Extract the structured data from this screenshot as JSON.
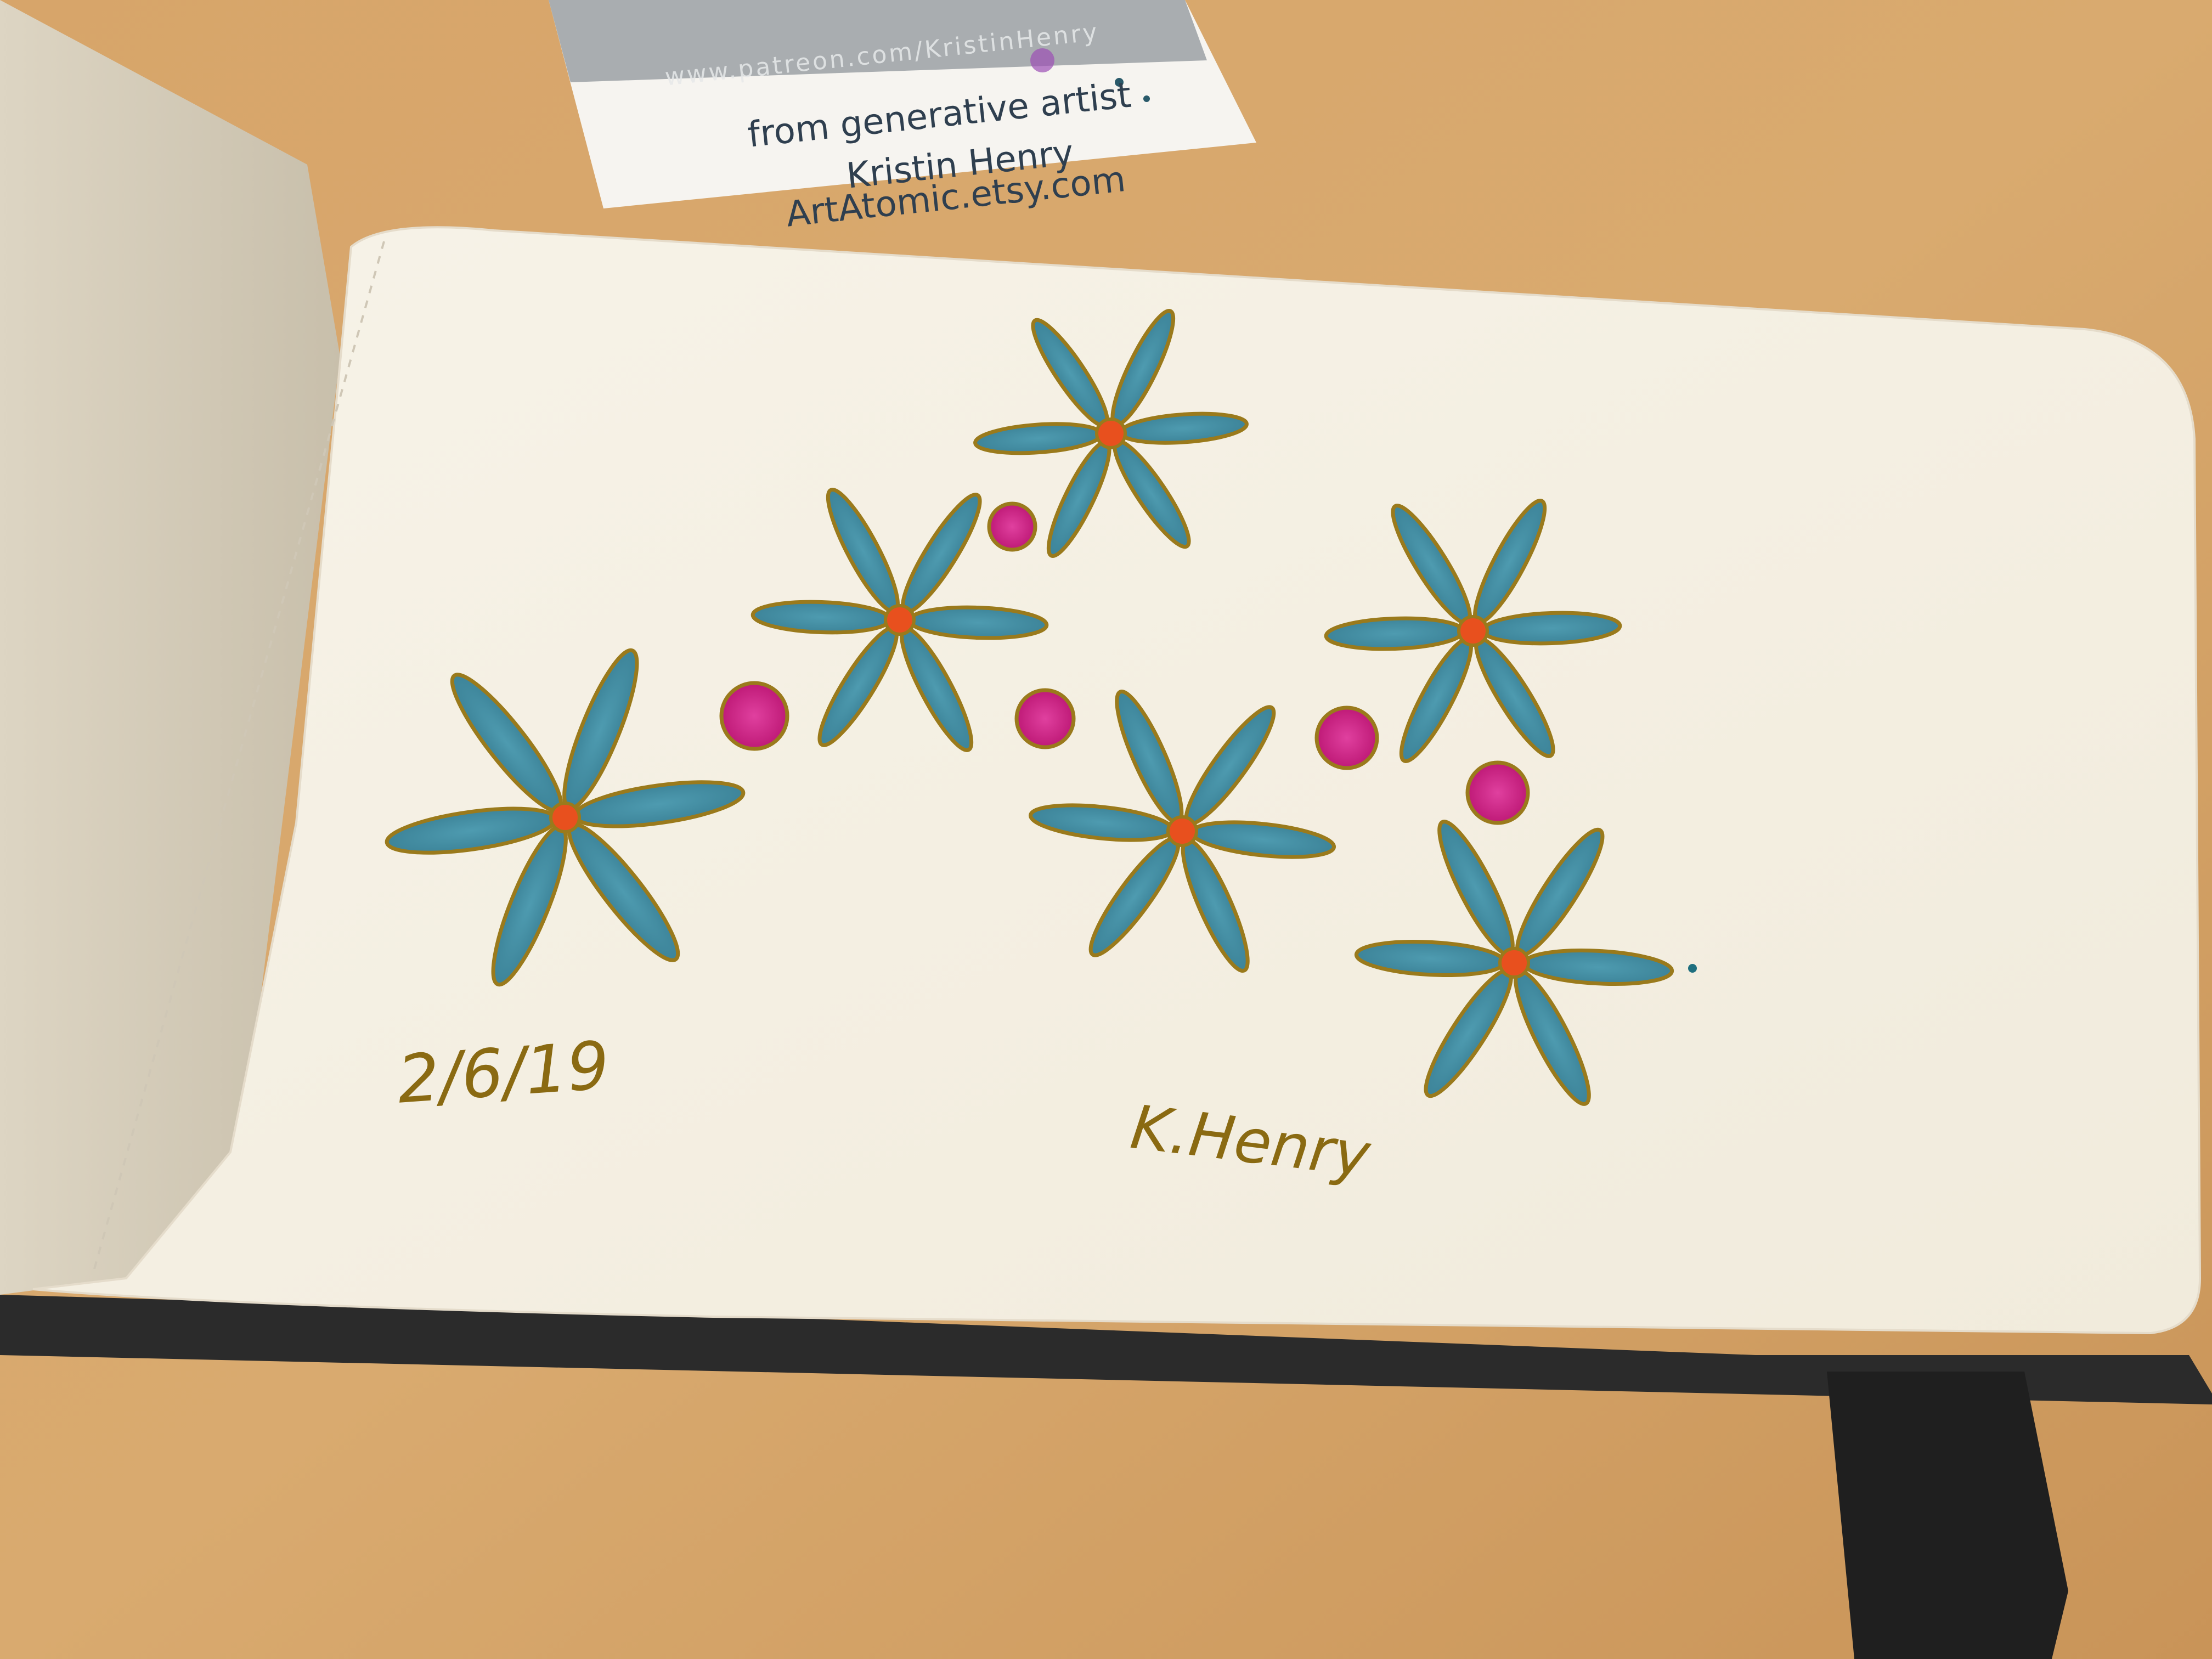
{
  "business_card": {
    "url_text": "www.patreon.com/KristinHenry",
    "line1": "from generative artist",
    "line2": "Kristin Henry",
    "line3": "ArtAtomic.etsy.com"
  },
  "sketch": {
    "date": "2/6/19",
    "signature": "K.Henry"
  },
  "colors": {
    "table": "#d9a86c",
    "page": "#f4f0e4",
    "petal": "#3f8fa6",
    "petal_outline": "#9a7a1c",
    "connector": "#d61d8a",
    "center": "#e8501e",
    "ink": "#8a6a12",
    "cover": "#2a2a2a"
  }
}
